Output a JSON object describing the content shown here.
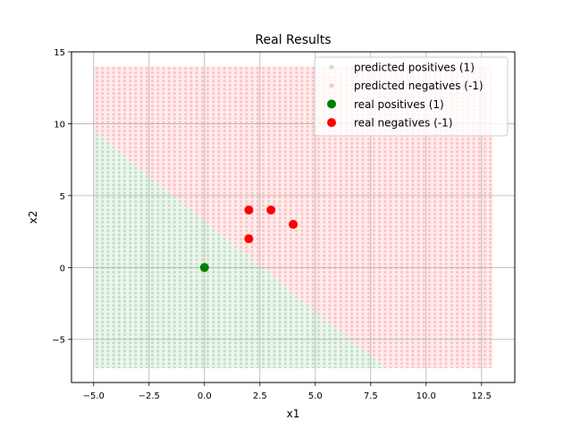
{
  "chart_data": {
    "type": "scatter",
    "title": "Real Results",
    "xlabel": "x1",
    "ylabel": "x2",
    "xlim": [
      -6,
      14
    ],
    "ylim": [
      -8,
      15
    ],
    "xticks": [
      -5.0,
      -2.5,
      0.0,
      2.5,
      5.0,
      7.5,
      10.0,
      12.5
    ],
    "xtick_labels": [
      "−5.0",
      "−2.5",
      "0.0",
      "2.5",
      "5.0",
      "7.5",
      "10.0",
      "12.5"
    ],
    "yticks": [
      -5,
      0,
      5,
      10,
      15
    ],
    "ytick_labels": [
      "−5",
      "0",
      "5",
      "10",
      "15"
    ],
    "grid": true,
    "legend_position": "top-right",
    "decision_region": {
      "x_range": [
        -5,
        13
      ],
      "y_range": [
        -7,
        14
      ],
      "boundary": "x1 + 0.8*x2 = 2.6 (approx.)",
      "positive_side": "below boundary",
      "negative_side": "above boundary"
    },
    "series": [
      {
        "name": "predicted positives (1)",
        "color": "#008000",
        "alpha": 0.15,
        "kind": "grid"
      },
      {
        "name": "predicted negatives (-1)",
        "color": "#ff0000",
        "alpha": 0.15,
        "kind": "grid"
      },
      {
        "name": "real positives (1)",
        "color": "#008000",
        "points": [
          [
            0,
            0
          ]
        ]
      },
      {
        "name": "real negatives (-1)",
        "color": "#ff0000",
        "points": [
          [
            2,
            4
          ],
          [
            3,
            4
          ],
          [
            4,
            3
          ],
          [
            2,
            2
          ]
        ]
      }
    ]
  }
}
